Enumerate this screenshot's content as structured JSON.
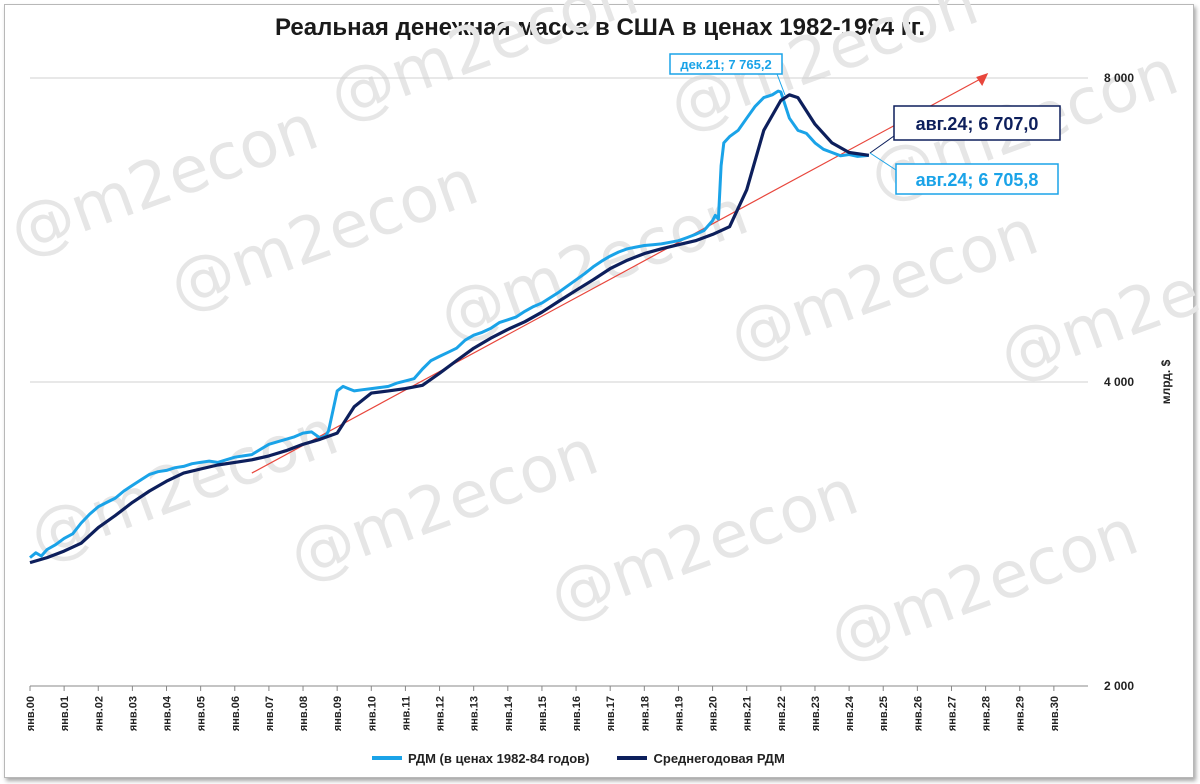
{
  "chart_data": {
    "type": "line",
    "title": "Реальная денежная масса в США в ценах 1982-1984 гг.",
    "ylabel": "млрд. $",
    "yscale": "log",
    "ylim": [
      2000,
      8000
    ],
    "yticks": [
      2000,
      4000,
      8000
    ],
    "ytick_labels": [
      "2 000",
      "4 000",
      "8 000"
    ],
    "xlim": [
      2000,
      2031
    ],
    "x_tick_labels": [
      "янв.00",
      "янв.01",
      "янв.02",
      "янв.03",
      "янв.04",
      "янв.05",
      "янв.06",
      "янв.07",
      "янв.08",
      "янв.09",
      "янв.10",
      "янв.11",
      "янв.12",
      "янв.13",
      "янв.14",
      "янв.15",
      "янв.16",
      "янв.17",
      "янв.18",
      "янв.19",
      "янв.20",
      "янв.21",
      "янв.22",
      "янв.23",
      "янв.24",
      "янв.25",
      "янв.26",
      "янв.27",
      "янв.28",
      "янв.29",
      "янв.30"
    ],
    "grid": "horizontal",
    "legend_position": "bottom",
    "series": [
      {
        "name": "РДМ (в ценах 1982-84 годов)",
        "color": "#1aa3e8",
        "x": [
          2000,
          2000.17,
          2000.33,
          2000.5,
          2000.75,
          2001,
          2001.25,
          2001.5,
          2001.75,
          2002,
          2002.25,
          2002.5,
          2002.75,
          2003,
          2003.25,
          2003.5,
          2003.75,
          2004,
          2004.25,
          2004.5,
          2004.75,
          2005,
          2005.25,
          2005.5,
          2005.75,
          2006,
          2006.25,
          2006.5,
          2006.75,
          2007,
          2007.25,
          2007.5,
          2007.75,
          2008,
          2008.25,
          2008.5,
          2008.67,
          2008.75,
          2009,
          2009.17,
          2009.33,
          2009.5,
          2009.75,
          2010,
          2010.25,
          2010.5,
          2010.75,
          2011,
          2011.25,
          2011.5,
          2011.75,
          2012,
          2012.25,
          2012.5,
          2012.75,
          2013,
          2013.25,
          2013.5,
          2013.75,
          2014,
          2014.25,
          2014.5,
          2014.75,
          2015,
          2015.25,
          2015.5,
          2015.75,
          2016,
          2016.25,
          2016.5,
          2016.75,
          2017,
          2017.25,
          2017.5,
          2017.75,
          2018,
          2018.25,
          2018.5,
          2018.75,
          2019,
          2019.25,
          2019.5,
          2019.75,
          2020,
          2020.08,
          2020.17,
          2020.25,
          2020.33,
          2020.5,
          2020.75,
          2021,
          2021.25,
          2021.5,
          2021.75,
          2021.92,
          2022,
          2022.25,
          2022.5,
          2022.75,
          2023,
          2023.25,
          2023.5,
          2023.75,
          2024,
          2024.25,
          2024.58
        ],
        "values": [
          2680,
          2710,
          2690,
          2730,
          2760,
          2800,
          2830,
          2900,
          2960,
          3010,
          3040,
          3070,
          3120,
          3160,
          3200,
          3240,
          3260,
          3270,
          3290,
          3300,
          3320,
          3330,
          3340,
          3330,
          3350,
          3370,
          3380,
          3390,
          3430,
          3470,
          3490,
          3510,
          3530,
          3560,
          3570,
          3520,
          3540,
          3580,
          3920,
          3960,
          3940,
          3920,
          3930,
          3940,
          3950,
          3960,
          3990,
          4010,
          4030,
          4120,
          4200,
          4240,
          4280,
          4320,
          4400,
          4450,
          4480,
          4520,
          4580,
          4610,
          4640,
          4700,
          4750,
          4790,
          4850,
          4910,
          4980,
          5050,
          5120,
          5200,
          5270,
          5330,
          5380,
          5420,
          5440,
          5460,
          5470,
          5480,
          5500,
          5520,
          5560,
          5600,
          5650,
          5780,
          5850,
          5800,
          6550,
          6900,
          7000,
          7100,
          7300,
          7500,
          7650,
          7700,
          7765.2,
          7750,
          7300,
          7100,
          7050,
          6900,
          6800,
          6750,
          6700,
          6720,
          6690,
          6705.8
        ]
      },
      {
        "name": "Среднегодовая РДМ",
        "color": "#0d1f5c",
        "x": [
          2000,
          2000.5,
          2001,
          2001.5,
          2002,
          2002.5,
          2003,
          2003.5,
          2004,
          2004.5,
          2005,
          2005.5,
          2006,
          2006.5,
          2007,
          2007.5,
          2008,
          2008.5,
          2009,
          2009.5,
          2010,
          2010.5,
          2011,
          2011.5,
          2012,
          2012.5,
          2013,
          2013.5,
          2014,
          2014.5,
          2015,
          2015.5,
          2016,
          2016.5,
          2017,
          2017.5,
          2018,
          2018.5,
          2019,
          2019.5,
          2020,
          2020.5,
          2021,
          2021.5,
          2022,
          2022.25,
          2022.5,
          2023,
          2023.5,
          2024,
          2024.58
        ],
        "values": [
          2650,
          2680,
          2720,
          2770,
          2870,
          2950,
          3040,
          3120,
          3190,
          3250,
          3280,
          3310,
          3330,
          3350,
          3380,
          3420,
          3470,
          3510,
          3560,
          3780,
          3900,
          3920,
          3940,
          3970,
          4080,
          4200,
          4320,
          4420,
          4510,
          4590,
          4690,
          4810,
          4930,
          5050,
          5180,
          5280,
          5360,
          5420,
          5470,
          5520,
          5600,
          5700,
          6200,
          7100,
          7600,
          7700,
          7650,
          7200,
          6900,
          6750,
          6707.0
        ]
      }
    ],
    "trendline": {
      "x": [
        2006.5,
        2027.9
      ],
      "values": [
        3250,
        8000
      ],
      "color": "#e8463c"
    },
    "annotations": [
      {
        "text": "дек.21; 7 765,2",
        "x": 2021.92,
        "y": 7765.2,
        "color": "#1aa3e8"
      },
      {
        "text": "авг.24; 6 707,0",
        "x": 2024.58,
        "y": 6707.0,
        "color": "#0d1f5c"
      },
      {
        "text": "авг.24; 6 705,8",
        "x": 2024.58,
        "y": 6705.8,
        "color": "#1aa3e8"
      }
    ],
    "watermark": "@m2econ"
  }
}
